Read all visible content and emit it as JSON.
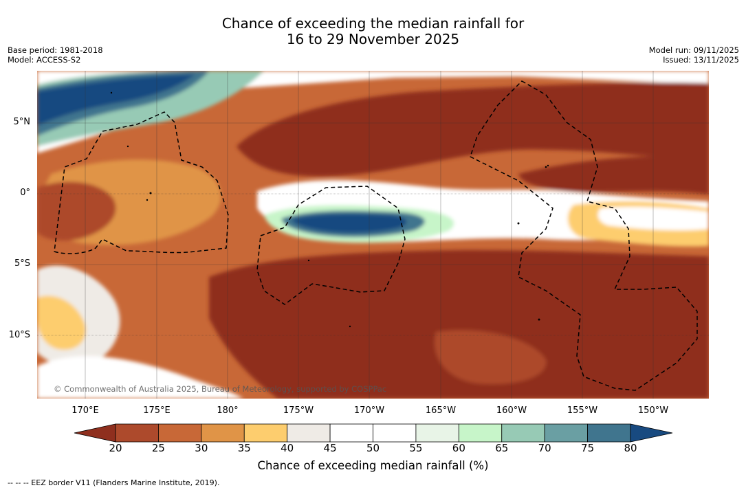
{
  "title_line1": "Chance of exceeding the median rainfall for",
  "title_line2": "16 to 29 November 2025",
  "base_period": "Base period: 1981-2018",
  "model": "Model: ACCESS-S2",
  "model_run": "Model run: 09/11/2025",
  "issued": "Issued: 13/11/2025",
  "copyright": "© Commonwealth of Australia 2025, Bureau of Meteorology, supported by COSPPac",
  "lat_labels": [
    "5°N",
    "0°",
    "5°S",
    "10°S"
  ],
  "lon_labels": [
    "170°E",
    "175°E",
    "180°",
    "175°W",
    "170°W",
    "165°W",
    "160°W",
    "155°W",
    "150°W"
  ],
  "colorbar": {
    "ticks": [
      "20",
      "25",
      "30",
      "35",
      "40",
      "45",
      "50",
      "55",
      "60",
      "65",
      "70",
      "75",
      "80"
    ],
    "colors": [
      "#8f2f1e",
      "#ad4a2c",
      "#c86837",
      "#e09447",
      "#fdcd6e",
      "#efebe6",
      "#ffffff",
      "#ffffff",
      "#e8f4e7",
      "#c7f5c9",
      "#97cab5",
      "#6a9fa3",
      "#40758e",
      "#184a80"
    ],
    "label": "Chance of exceeding median rainfall (%)"
  },
  "legend_text": "--  --  -- EEZ border V11 (Flanders Marine Institute, 2019)."
}
